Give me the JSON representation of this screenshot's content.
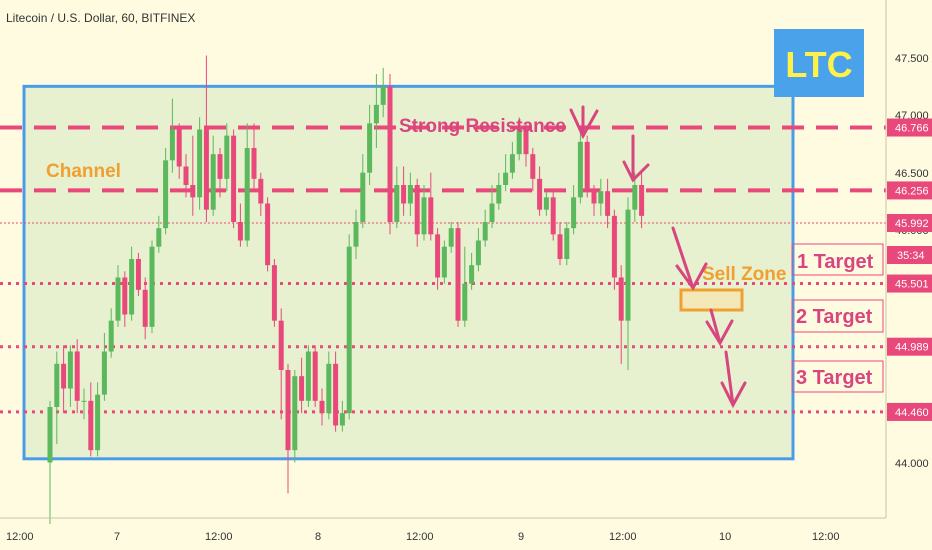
{
  "header": {
    "title": "Litecoin / U.S. Dollar, 60, BITFINEX"
  },
  "badge": {
    "label": "LTC"
  },
  "colors": {
    "background": "#fffbe0",
    "up": "#5cb85c",
    "down": "#e8487a",
    "level_line": "#e8487a",
    "box_border": "#4a9ce8",
    "box_fill": "#e7f0cf",
    "annotation_pink": "#d8457f",
    "annotation_orange": "#f0a030",
    "badge_bg": "#4aa3ea",
    "badge_text": "#fff14a",
    "axis_text": "#333333"
  },
  "chart_data": {
    "type": "candlestick",
    "ylim": [
      43.6,
      47.8
    ],
    "yticks": [
      "47.500",
      "47.000",
      "46.500",
      "46.000",
      "44.000"
    ],
    "xticks": [
      "12:00",
      "7",
      "12:00",
      "8",
      "12:00",
      "9",
      "12:00",
      "10",
      "12:00"
    ],
    "price_labels": [
      {
        "value": 46.766,
        "label": "46.766"
      },
      {
        "value": 46.256,
        "label": "46.256"
      },
      {
        "value": 45.992,
        "label": "45.992"
      },
      {
        "value": 45.501,
        "label": "45.501"
      },
      {
        "value": 44.989,
        "label": "44.989"
      },
      {
        "value": 44.46,
        "label": "44.460"
      }
    ],
    "countdown": "35:34",
    "levels": [
      {
        "value": 46.766,
        "style": "dashed"
      },
      {
        "value": 46.256,
        "style": "dashed"
      },
      {
        "value": 45.992,
        "style": "current"
      },
      {
        "value": 45.501,
        "style": "dotted"
      },
      {
        "value": 44.989,
        "style": "dotted"
      },
      {
        "value": 44.46,
        "style": "dotted"
      }
    ],
    "channel": {
      "top": 47.1,
      "bottom": 44.08
    },
    "candles": [
      [
        44.05,
        44.5,
        43.55,
        44.55
      ],
      [
        44.5,
        44.85,
        44.2,
        44.95
      ],
      [
        44.85,
        44.65,
        44.45,
        45.0
      ],
      [
        44.65,
        44.95,
        44.5,
        45.0
      ],
      [
        44.95,
        44.55,
        44.45,
        45.05
      ],
      [
        44.55,
        44.55,
        44.4,
        44.65
      ],
      [
        44.55,
        44.15,
        44.1,
        44.7
      ],
      [
        44.15,
        44.6,
        44.1,
        44.7
      ],
      [
        44.6,
        44.95,
        44.55,
        45.1
      ],
      [
        44.95,
        45.2,
        44.9,
        45.3
      ],
      [
        45.2,
        45.55,
        45.15,
        45.65
      ],
      [
        45.55,
        45.25,
        45.15,
        45.6
      ],
      [
        45.25,
        45.7,
        45.2,
        45.8
      ],
      [
        45.7,
        45.45,
        45.4,
        45.75
      ],
      [
        45.45,
        45.15,
        45.05,
        45.55
      ],
      [
        45.15,
        45.8,
        45.1,
        45.85
      ],
      [
        45.8,
        45.95,
        45.75,
        46.05
      ],
      [
        45.95,
        46.5,
        45.9,
        46.6
      ],
      [
        46.5,
        46.75,
        46.4,
        47.0
      ],
      [
        46.75,
        46.45,
        46.35,
        46.8
      ],
      [
        46.45,
        46.3,
        46.2,
        46.55
      ],
      [
        46.3,
        46.2,
        46.05,
        46.7
      ],
      [
        46.2,
        46.75,
        46.1,
        46.85
      ],
      [
        46.75,
        46.1,
        46.0,
        47.35
      ],
      [
        46.1,
        46.55,
        46.05,
        46.7
      ],
      [
        46.55,
        46.35,
        46.2,
        46.6
      ],
      [
        46.35,
        46.7,
        46.25,
        46.8
      ],
      [
        46.7,
        46.0,
        45.95,
        46.75
      ],
      [
        46.0,
        45.85,
        45.8,
        46.15
      ],
      [
        45.85,
        46.6,
        45.8,
        46.8
      ],
      [
        46.6,
        46.35,
        46.25,
        46.8
      ],
      [
        46.35,
        46.15,
        46.05,
        46.4
      ],
      [
        46.15,
        45.65,
        45.6,
        46.2
      ],
      [
        45.65,
        45.2,
        45.15,
        45.7
      ],
      [
        45.2,
        44.8,
        44.4,
        45.3
      ],
      [
        44.8,
        44.15,
        43.8,
        44.85
      ],
      [
        44.15,
        44.75,
        44.05,
        44.8
      ],
      [
        44.75,
        44.55,
        44.45,
        44.9
      ],
      [
        44.55,
        44.95,
        44.5,
        45.0
      ],
      [
        44.95,
        44.55,
        44.5,
        45.0
      ],
      [
        44.55,
        44.45,
        44.35,
        44.65
      ],
      [
        44.45,
        44.85,
        44.4,
        44.95
      ],
      [
        44.85,
        44.35,
        44.3,
        44.95
      ],
      [
        44.35,
        44.45,
        44.3,
        44.55
      ],
      [
        44.45,
        45.8,
        44.4,
        45.9
      ],
      [
        45.8,
        46.0,
        45.7,
        46.1
      ],
      [
        46.0,
        46.4,
        45.95,
        46.55
      ],
      [
        46.4,
        46.8,
        46.3,
        46.95
      ],
      [
        46.8,
        46.95,
        46.6,
        47.2
      ],
      [
        46.95,
        47.1,
        46.85,
        47.25
      ],
      [
        47.1,
        46.0,
        45.9,
        47.2
      ],
      [
        46.0,
        46.3,
        45.95,
        46.45
      ],
      [
        46.3,
        46.15,
        46.05,
        46.45
      ],
      [
        46.15,
        46.3,
        46.05,
        46.4
      ],
      [
        46.3,
        45.9,
        45.8,
        46.35
      ],
      [
        45.9,
        46.2,
        45.85,
        46.3
      ],
      [
        46.2,
        45.9,
        45.85,
        46.4
      ],
      [
        45.9,
        45.55,
        45.45,
        45.95
      ],
      [
        45.55,
        45.8,
        45.5,
        45.85
      ],
      [
        45.8,
        45.95,
        45.75,
        46.0
      ],
      [
        45.95,
        45.2,
        45.15,
        46.0
      ],
      [
        45.2,
        45.5,
        45.15,
        45.8
      ],
      [
        45.5,
        45.65,
        45.45,
        45.75
      ],
      [
        45.65,
        45.85,
        45.6,
        45.95
      ],
      [
        45.85,
        46.0,
        45.8,
        46.1
      ],
      [
        46.0,
        46.15,
        45.95,
        46.3
      ],
      [
        46.15,
        46.3,
        46.1,
        46.4
      ],
      [
        46.3,
        46.4,
        46.25,
        46.55
      ],
      [
        46.4,
        46.55,
        46.35,
        46.65
      ],
      [
        46.55,
        46.75,
        46.5,
        46.85
      ],
      [
        46.75,
        46.55,
        46.45,
        46.8
      ],
      [
        46.55,
        46.35,
        46.25,
        46.6
      ],
      [
        46.35,
        46.1,
        46.05,
        46.45
      ],
      [
        46.1,
        46.2,
        46.05,
        46.25
      ],
      [
        46.2,
        45.9,
        45.85,
        46.25
      ],
      [
        45.9,
        45.7,
        45.65,
        46.0
      ],
      [
        45.7,
        45.95,
        45.65,
        46.0
      ],
      [
        45.95,
        46.2,
        45.9,
        46.3
      ],
      [
        46.2,
        46.65,
        46.15,
        46.75
      ],
      [
        46.65,
        46.25,
        46.2,
        46.7
      ],
      [
        46.25,
        46.15,
        46.05,
        46.3
      ],
      [
        46.15,
        46.25,
        46.05,
        46.35
      ],
      [
        46.25,
        46.05,
        45.95,
        46.35
      ],
      [
        46.05,
        45.55,
        45.45,
        46.1
      ],
      [
        45.55,
        45.2,
        44.85,
        45.65
      ],
      [
        45.2,
        46.1,
        44.8,
        46.2
      ],
      [
        46.1,
        46.3,
        46.0,
        46.4
      ],
      [
        46.3,
        46.05,
        45.95,
        46.4
      ]
    ],
    "annotations": {
      "channel": "Channel",
      "strong_resistance": "Strong Resistance",
      "sell_zone": "Sell Zone",
      "target1": "1 Target",
      "target2": "2 Target",
      "target3": "3 Target"
    }
  }
}
